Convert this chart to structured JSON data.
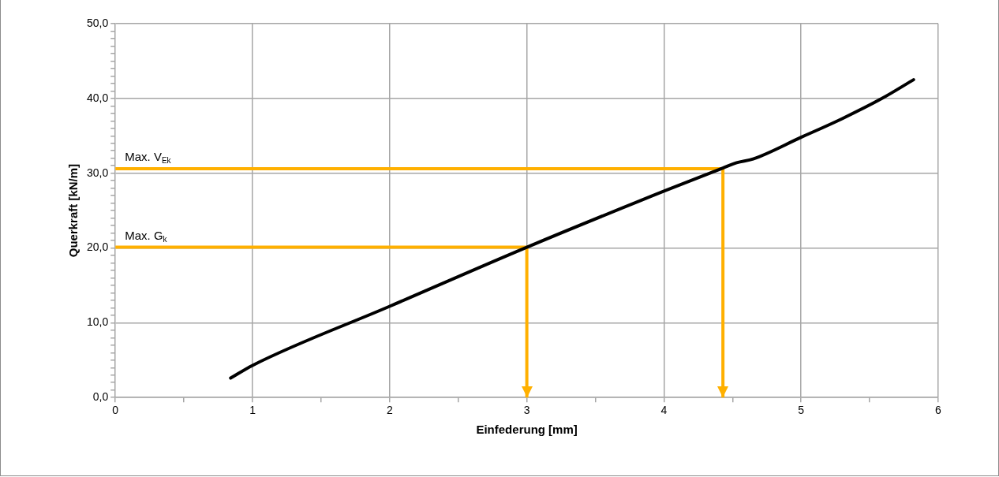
{
  "chart_data": {
    "type": "line",
    "xlabel": "Einfederung [mm]",
    "ylabel": "Querkraft [kN/m]",
    "xlim": [
      0,
      6
    ],
    "ylim": [
      0,
      50
    ],
    "xticks": [
      0,
      {
        "value": 0.5,
        "label": null
      },
      1,
      {
        "value": 1.5,
        "label": null
      },
      2,
      {
        "value": 2.5,
        "label": null
      },
      3,
      {
        "value": 3.5,
        "label": null
      },
      4,
      {
        "value": 4.5,
        "label": null
      },
      5,
      {
        "value": 5.5,
        "label": null
      },
      6
    ],
    "yticks": [
      {
        "value": 0,
        "label": "0,0"
      },
      {
        "value": 1,
        "label": null
      },
      {
        "value": 2,
        "label": null
      },
      {
        "value": 3,
        "label": null
      },
      {
        "value": 4,
        "label": null
      },
      {
        "value": 5,
        "label": null
      },
      {
        "value": 6,
        "label": null
      },
      {
        "value": 7,
        "label": null
      },
      {
        "value": 8,
        "label": null
      },
      {
        "value": 9,
        "label": null
      },
      {
        "value": 10,
        "label": "10,0"
      },
      {
        "value": 11,
        "label": null
      },
      {
        "value": 12,
        "label": null
      },
      {
        "value": 13,
        "label": null
      },
      {
        "value": 14,
        "label": null
      },
      {
        "value": 15,
        "label": null
      },
      {
        "value": 16,
        "label": null
      },
      {
        "value": 17,
        "label": null
      },
      {
        "value": 18,
        "label": null
      },
      {
        "value": 19,
        "label": null
      },
      {
        "value": 20,
        "label": "20,0"
      },
      {
        "value": 21,
        "label": null
      },
      {
        "value": 22,
        "label": null
      },
      {
        "value": 23,
        "label": null
      },
      {
        "value": 24,
        "label": null
      },
      {
        "value": 25,
        "label": null
      },
      {
        "value": 26,
        "label": null
      },
      {
        "value": 27,
        "label": null
      },
      {
        "value": 28,
        "label": null
      },
      {
        "value": 29,
        "label": null
      },
      {
        "value": 30,
        "label": "30,0"
      },
      {
        "value": 31,
        "label": null
      },
      {
        "value": 32,
        "label": null
      },
      {
        "value": 33,
        "label": null
      },
      {
        "value": 34,
        "label": null
      },
      {
        "value": 35,
        "label": null
      },
      {
        "value": 36,
        "label": null
      },
      {
        "value": 37,
        "label": null
      },
      {
        "value": 38,
        "label": null
      },
      {
        "value": 39,
        "label": null
      },
      {
        "value": 40,
        "label": "40,0"
      },
      {
        "value": 41,
        "label": null
      },
      {
        "value": 42,
        "label": null
      },
      {
        "value": 43,
        "label": null
      },
      {
        "value": 44,
        "label": null
      },
      {
        "value": 45,
        "label": null
      },
      {
        "value": 46,
        "label": null
      },
      {
        "value": 47,
        "label": null
      },
      {
        "value": 48,
        "label": null
      },
      {
        "value": 49,
        "label": null
      },
      {
        "value": 50,
        "label": "50,0"
      }
    ],
    "grid": true,
    "marker": "none",
    "line_style": "solid",
    "legend": false,
    "series": [
      {
        "color": "#000000",
        "x": [
          0.84,
          1,
          2,
          3,
          4,
          4.43,
          4.53,
          4.65,
          5,
          5.3,
          5.59,
          5.82
        ],
        "values": [
          2.6,
          4.3,
          12.2,
          20.1,
          27.6,
          30.7,
          31.4,
          31.9,
          34.8,
          37.3,
          40,
          42.5
        ]
      },
      {
        "color": "#ffb000",
        "x": [
          0,
          3,
          3
        ],
        "values": [
          20.1,
          20.1,
          0
        ]
      },
      {
        "color": "#ffb000",
        "x": [
          0,
          4.43,
          4.43
        ],
        "values": [
          30.6,
          30.6,
          0
        ]
      }
    ],
    "annotations": [
      {
        "text": "Max. V$_{Ek}$",
        "x": 0,
        "y": 30.6
      },
      {
        "text": "Max. G$_{k}$",
        "x": 0,
        "y": 20.1
      }
    ]
  }
}
